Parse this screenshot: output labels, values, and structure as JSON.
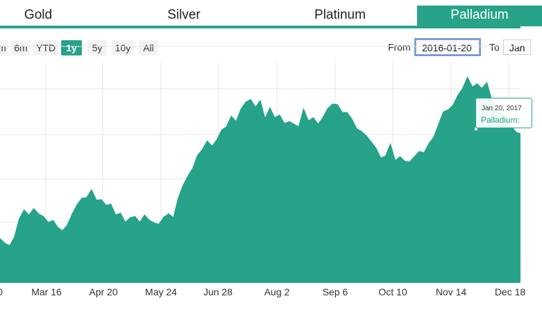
{
  "tabs": [
    {
      "label": "Gold",
      "active": false
    },
    {
      "label": "Silver",
      "active": false
    },
    {
      "label": "Platinum",
      "active": false
    },
    {
      "label": "Palladium",
      "active": true
    }
  ],
  "range_selector": {
    "buttons": [
      "m",
      "6m",
      "YTD",
      "1y",
      "5y",
      "10y",
      "All"
    ],
    "selected": "1y",
    "from_label": "From",
    "from_value": "2016-01-20",
    "to_label": "To",
    "to_value": "Jan"
  },
  "tooltip": {
    "date": "Jan 20, 2017",
    "series_label": "Palladium:"
  },
  "colors": {
    "accent": "#26a389",
    "grid": "#e6e6e6"
  },
  "chart_data": {
    "type": "area",
    "title": "",
    "xlabel": "",
    "ylabel": "",
    "x_ticks": [
      "0",
      "Mar 16",
      "Apr 20",
      "May 24",
      "Jun 28",
      "Aug 2",
      "Sep 6",
      "Oct 10",
      "Nov 14",
      "Dec 18"
    ],
    "grid": true,
    "series": [
      {
        "name": "Palladium",
        "values": [
          504,
          497,
          493,
          506,
          534,
          548,
          540,
          550,
          542,
          538,
          529,
          532,
          521,
          516,
          525,
          542,
          556,
          566,
          567,
          579,
          563,
          564,
          555,
          557,
          540,
          543,
          529,
          536,
          538,
          529,
          540,
          532,
          528,
          526,
          537,
          542,
          536,
          566,
          586,
          600,
          612,
          632,
          641,
          654,
          646,
          656,
          671,
          676,
          692,
          684,
          703,
          714,
          718,
          706,
          716,
          688,
          705,
          690,
          694,
          681,
          684,
          680,
          676,
          703,
          685,
          690,
          680,
          690,
          704,
          711,
          710,
          698,
          698,
          688,
          673,
          669,
          662,
          653,
          643,
          628,
          631,
          649,
          624,
          630,
          623,
          622,
          630,
          638,
          636,
          650,
          660,
          679,
          699,
          702,
          709,
          724,
          735,
          752,
          737,
          742,
          735,
          744,
          718,
          704,
          698,
          688,
          678,
          668,
          665
        ]
      }
    ]
  }
}
